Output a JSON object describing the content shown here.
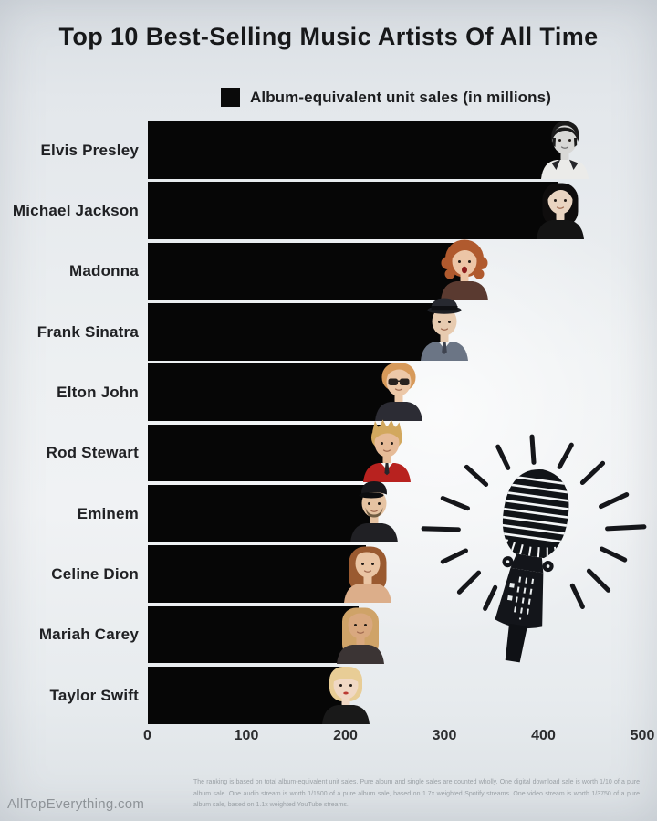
{
  "chart_data": {
    "type": "bar",
    "orientation": "horizontal",
    "title": "Top 10 Best-Selling Music Artists Of All Time",
    "legend": "Album-equivalent unit sales (in millions)",
    "legend_position": "top",
    "categories": [
      "Elvis Presley",
      "Michael Jackson",
      "Madonna",
      "Frank Sinatra",
      "Elton John",
      "Rod Stewart",
      "Eminem",
      "Celine Dion",
      "Mariah Carey",
      "Taylor Swift"
    ],
    "values": [
      420,
      415,
      318,
      298,
      252,
      240,
      227,
      221,
      213,
      199
    ],
    "unit": "million album-equivalent units",
    "xlabel": "",
    "ylabel": "",
    "xlim": [
      0,
      500
    ],
    "xticks": [
      0,
      100,
      200,
      300,
      400,
      500
    ],
    "grid": false,
    "bar_color": "#060606",
    "background_color": "#e9edf0"
  },
  "avatars": [
    {
      "artist": "Elvis Presley",
      "style": "pompadour",
      "hair": "#1a1a1a",
      "skin": "#d8d8d6",
      "outfit": "#ebebe9",
      "mouth": "#6f6f6f"
    },
    {
      "artist": "Michael Jackson",
      "style": "long-curls",
      "hair": "#0f0d0d",
      "skin": "#e9d4c1",
      "outfit": "#141414"
    },
    {
      "artist": "Madonna",
      "style": "big-curly",
      "hair": "#b05a2e",
      "skin": "#ecc5a6",
      "outfit": "#5a3a30"
    },
    {
      "artist": "Frank Sinatra",
      "style": "fedora",
      "hair": "#23252a",
      "skin": "#e7cbb0",
      "outfit": "#6b7585"
    },
    {
      "artist": "Elton John",
      "style": "mop",
      "hair": "#d79a5a",
      "skin": "#ecc8a8",
      "outfit": "#2c2c34"
    },
    {
      "artist": "Rod Stewart",
      "style": "spiky",
      "hair": "#d2a85e",
      "skin": "#e6bb98",
      "outfit": "#b8221f"
    },
    {
      "artist": "Eminem",
      "style": "cap",
      "hair": "#17171b",
      "skin": "#e6c3a2",
      "outfit": "#202024"
    },
    {
      "artist": "Celine Dion",
      "style": "long-wavy",
      "hair": "#9a5a30",
      "skin": "#eac5a4",
      "outfit": "#dcae8a"
    },
    {
      "artist": "Mariah Carey",
      "style": "long-straight",
      "hair": "#cfa368",
      "skin": "#d9a87f",
      "outfit": "#3b3434"
    },
    {
      "artist": "Taylor Swift",
      "style": "bangs-bob",
      "hair": "#e8cd96",
      "skin": "#f0d8c4",
      "outfit": "#191919"
    }
  ],
  "decor": {
    "microphone": "vintage-microphone-with-sunburst"
  },
  "footer": {
    "site": "AllTopEverything.com",
    "methodology": "The ranking is based on total album-equivalent unit sales. Pure album and single sales are counted wholly. One digital download sale is worth 1/10 of a pure album sale. One audio stream is worth 1/1500 of a pure album sale, based on 1.7x weighted Spotify streams. One video stream is worth 1/3750 of a pure album sale, based on 1.1x weighted YouTube streams."
  }
}
